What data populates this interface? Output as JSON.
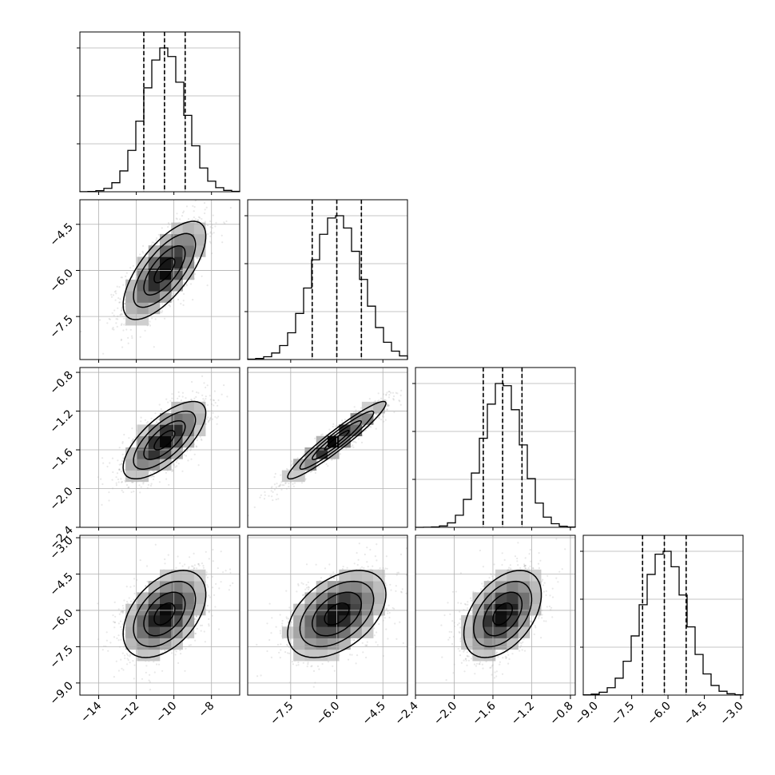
{
  "chart_data": {
    "type": "corner",
    "parameters": [
      {
        "index": 0,
        "median": -10.5,
        "std": 1.1,
        "quantiles": [
          -11.6,
          -10.5,
          -9.4
        ],
        "range": [
          -15.0,
          -6.5
        ]
      },
      {
        "index": 1,
        "median": -6.0,
        "std": 0.8,
        "quantiles": [
          -6.8,
          -6.0,
          -5.2
        ],
        "range": [
          -8.9,
          -3.7
        ]
      },
      {
        "index": 2,
        "median": -1.5,
        "std": 0.2,
        "quantiles": [
          -1.7,
          -1.5,
          -1.3
        ],
        "range": [
          -2.4,
          -0.75
        ]
      },
      {
        "index": 3,
        "median": -6.15,
        "std": 0.9,
        "quantiles": [
          -7.05,
          -6.15,
          -5.25
        ],
        "range": [
          -9.5,
          -2.9
        ]
      }
    ],
    "correlations": [
      {
        "x": 0,
        "y": 1,
        "rho": 0.7
      },
      {
        "x": 0,
        "y": 2,
        "rho": 0.7
      },
      {
        "x": 1,
        "y": 2,
        "rho": 0.95
      },
      {
        "x": 0,
        "y": 3,
        "rho": 0.45
      },
      {
        "x": 1,
        "y": 3,
        "rho": 0.45
      },
      {
        "x": 2,
        "y": 3,
        "rho": 0.45
      }
    ],
    "x_tick_labels": [
      [
        "−14",
        "−12",
        "−10",
        "−8"
      ],
      [
        "−7.5",
        "−6.0",
        "−4.5"
      ],
      [
        "−2.4",
        "−2.0",
        "−1.6",
        "−1.2",
        "−0.8"
      ],
      [
        "−9.0",
        "−7.5",
        "−6.0",
        "−4.5",
        "−3.0"
      ]
    ],
    "y_tick_labels": [
      [],
      [
        "−4.5",
        "−6.0",
        "−7.5"
      ],
      [
        "−0.8",
        "−1.2",
        "−1.6",
        "−2.0",
        "−2.4"
      ],
      [
        "−3.0",
        "−4.5",
        "−6.0",
        "−7.5",
        "−9.0"
      ]
    ],
    "x_tick_values": [
      [
        -14,
        -12,
        -10,
        -8
      ],
      [
        -7.5,
        -6.0,
        -4.5
      ],
      [
        -2.4,
        -2.0,
        -1.6,
        -1.2,
        -0.8
      ],
      [
        -9.0,
        -7.5,
        -6.0,
        -4.5,
        -3.0
      ]
    ],
    "y_tick_values": [
      [],
      [
        -4.5,
        -6.0,
        -7.5
      ],
      [
        -0.8,
        -1.2,
        -1.6,
        -2.0,
        -2.4
      ],
      [
        -3.0,
        -4.5,
        -6.0,
        -7.5,
        -9.0
      ]
    ],
    "histogram_bins": 20,
    "contour_levels_sigma": [
      0.5,
      1.0,
      1.5,
      2.0
    ],
    "grid": true,
    "title": "",
    "xlabel": "",
    "ylabel": ""
  }
}
